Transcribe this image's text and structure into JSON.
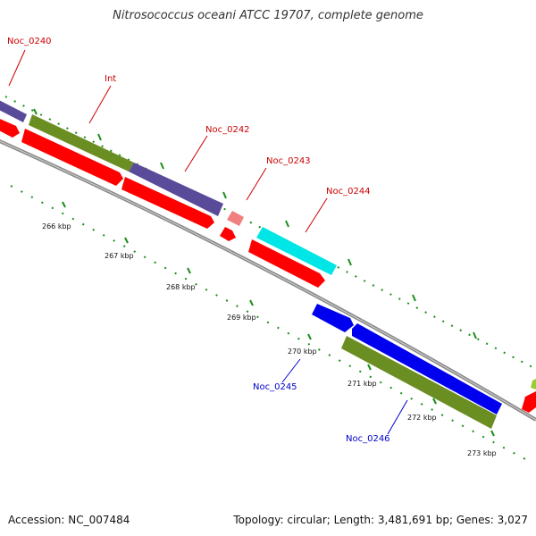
{
  "title": "Nitrosococcus oceani ATCC 19707, complete genome",
  "footer": {
    "accession": "Accession: NC_007484",
    "summary": "Topology: circular; Length: 3,481,691 bp; Genes: 3,027"
  },
  "genes": [
    {
      "name": "Noc_0240"
    },
    {
      "name": "Int"
    },
    {
      "name": "Noc_0242"
    },
    {
      "name": "Noc_0243"
    },
    {
      "name": "Noc_0244"
    },
    {
      "name": "Noc_0245"
    },
    {
      "name": "Noc_0246"
    }
  ],
  "kbp_ticks": [
    "266 kbp",
    "267 kbp",
    "268 kbp",
    "269 kbp",
    "270 kbp",
    "271 kbp",
    "272 kbp",
    "273 kbp"
  ],
  "colors": {
    "label_forward": "#cc0000",
    "label_reverse": "#0000cc",
    "cds_red": "#ff0000",
    "gene_purple": "#5a4a9a",
    "gene_olive": "#6b8e23",
    "gene_cyan": "#00e5e5",
    "gene_blue": "#0000ee",
    "gene_pink": "#f08080",
    "tick_green": "#1a8f1a",
    "backbone": "#888888"
  }
}
